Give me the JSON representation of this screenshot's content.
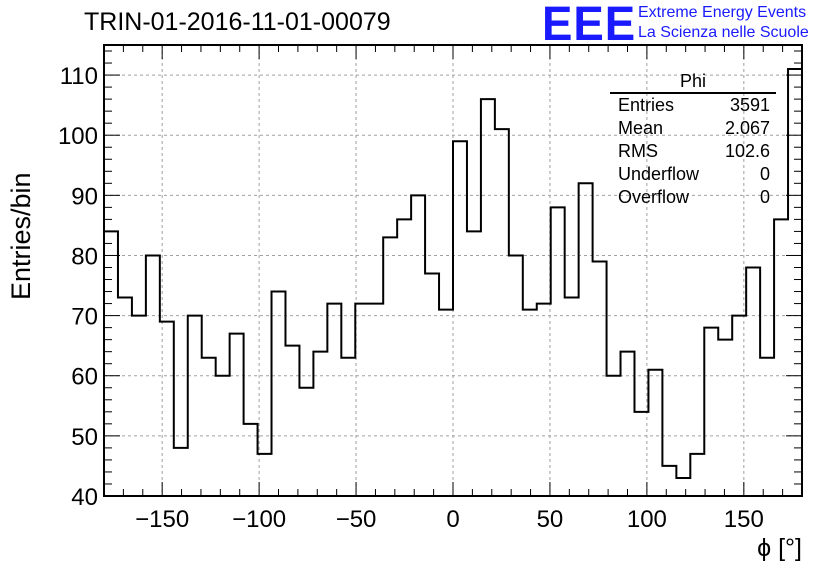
{
  "header": {
    "title": "TRIN-01-2016-11-01-00079",
    "logo_text": "EEE",
    "org_line1": "Extreme Energy Events",
    "org_line2": "La Scienza nelle Scuole"
  },
  "stats_box": {
    "name": "Phi",
    "rows": [
      {
        "label": "Entries",
        "value": "3591"
      },
      {
        "label": "Mean",
        "value": "2.067"
      },
      {
        "label": "RMS",
        "value": "102.6"
      },
      {
        "label": "Underflow",
        "value": "0"
      },
      {
        "label": "Overflow",
        "value": "0"
      }
    ]
  },
  "chart_data": {
    "type": "histogram",
    "title": "TRIN-01-2016-11-01-00079",
    "xlabel": "ϕ [°]",
    "ylabel": "Entries/bin",
    "xlim": [
      -180,
      180
    ],
    "ylim": [
      40,
      115
    ],
    "bin_width": 7.2,
    "grid": true,
    "x_ticks": [
      -150,
      -100,
      -50,
      0,
      50,
      100,
      150
    ],
    "y_ticks": [
      40,
      50,
      60,
      70,
      80,
      90,
      100,
      110
    ],
    "values": [
      84,
      73,
      70,
      80,
      69,
      48,
      70,
      63,
      60,
      67,
      52,
      47,
      74,
      65,
      58,
      64,
      72,
      63,
      72,
      72,
      83,
      86,
      90,
      77,
      71,
      99,
      84,
      106,
      101,
      80,
      71,
      72,
      88,
      73,
      92,
      79,
      60,
      64,
      54,
      61,
      45,
      43,
      47,
      68,
      66,
      70,
      78,
      63,
      86,
      111
    ],
    "colors": {
      "line": "#000000",
      "grid": "#a0a0a0",
      "logo": "#1a1aff"
    }
  }
}
